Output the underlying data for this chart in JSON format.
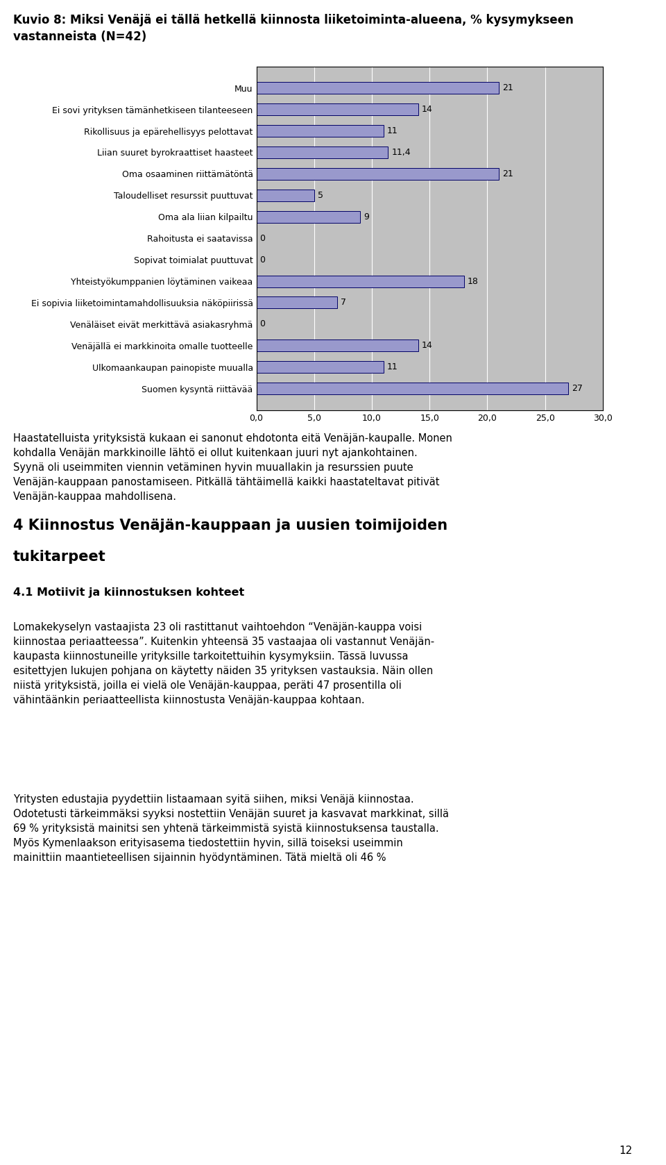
{
  "title_line1": "Kuvio 8: Miksi Venäjä ei tällä hetkellä kiinnosta liiketoiminta-alueena, % kysymykseen",
  "title_line2": "vastanneista (N=42)",
  "categories": [
    "Suomen kysyntä riittävää",
    "Ulkomaankaupan painopiste muualla",
    "Venäjällä ei markkinoita omalle tuotteelle",
    "Venäläiset eivät merkittävä asiakasryhmä",
    "Ei sopivia liiketoimintamahdollisuuksia näköpiirissä",
    "Yhteistyökumppanien löytäminen vaikeaa",
    "Sopivat toimialat puuttuvat",
    "Rahoitusta ei saatavissa",
    "Oma ala liian kilpailtu",
    "Taloudelliset resurssit puuttuvat",
    "Oma osaaminen riittämätöntä",
    "Liian suuret byrokraattiset haasteet",
    "Rikollisuus ja epärehellisyys pelottavat",
    "Ei sovi yrityksen tämänhetkiseen tilanteeseen",
    "Muu"
  ],
  "values": [
    27,
    11,
    14,
    0,
    7,
    18,
    0,
    0,
    9,
    5,
    21,
    11.4,
    11,
    14,
    21
  ],
  "value_labels": [
    "27",
    "11",
    "14",
    "0",
    "7",
    "18",
    "0",
    "0",
    "9",
    "5",
    "21",
    "11,4",
    "11",
    "14",
    "21"
  ],
  "bar_color": "#9999CC",
  "bar_edge_color": "#000066",
  "plot_bg_color": "#C0C0C0",
  "xlim": [
    0,
    30
  ],
  "xticks": [
    0.0,
    5.0,
    10.0,
    15.0,
    20.0,
    25.0,
    30.0
  ],
  "xtick_labels": [
    "0,0",
    "5,0",
    "10,0",
    "15,0",
    "20,0",
    "25,0",
    "30,0"
  ],
  "tick_fontsize": 9,
  "value_fontsize": 9,
  "body1": "Haastatelluista yrityksistä kukaan ei sanonut ehdotonta eitä Venäjän-kaupalle. Monen\nkohdalla Venäjän markkinoille lähtö ei ollut kuitenkaan juuri nyt ajankohtainen.\nSyynä oli useimmiten viennin vetäminen hyvin muuallakin ja resurssien puute\nVenäjän-kauppaan panostamiseen. Pitkällä tähtäimellä kaikki haastateltavat pitivät\nVenäjän-kauppaa mahdollisena.",
  "section_header_line1": "4 Kiinnostus Venäjän-kauppaan ja uusien toimijoiden",
  "section_header_line2": "tukitarpeet",
  "subsection_header": "4.1 Motiivit ja kiinnostuksen kohteet",
  "body2": "Lomakekyselyn vastaajista 23 oli rastittanut vaihtoehdon “Venäjän-kauppa voisi\nkiinnostaa periaatteessa”. Kuitenkin yhteensä 35 vastaajaa oli vastannut Venäjän-\nkaupasta kiinnostuneille yrityksille tarkoitettuihin kysymyksiin. Tässä luvussa\nesitettyjen lukujen pohjana on käytetty näiden 35 yrityksen vastauksia. Näin ollen\nniistä yrityksistä, joilla ei vielä ole Venäjän-kauppaa, peräti 47 prosentilla oli\nvähintäänkin periaatteellista kiinnostusta Venäjän-kauppaa kohtaan.",
  "body3": "Yritysten edustajia pyydettiin listaamaan syitä siihen, miksi Venäjä kiinnostaa.\nOdotetusti tärkeimmäksi syyksi nostettiin Venäjän suuret ja kasvavat markkinat, sillä\n69 % yrityksistä mainitsi sen yhtenä tärkeimmistä syistä kiinnostuksensa taustalla.\nMyös Kymenlaakson erityisasema tiedostettiin hyvin, sillä toiseksi useimmin\nmainittiin maantieteellisen sijainnin hyödyntäminen. Tätä mieltä oli 46 %",
  "page_number": "12",
  "fig_width": 9.6,
  "fig_height": 16.78,
  "dpi": 100
}
